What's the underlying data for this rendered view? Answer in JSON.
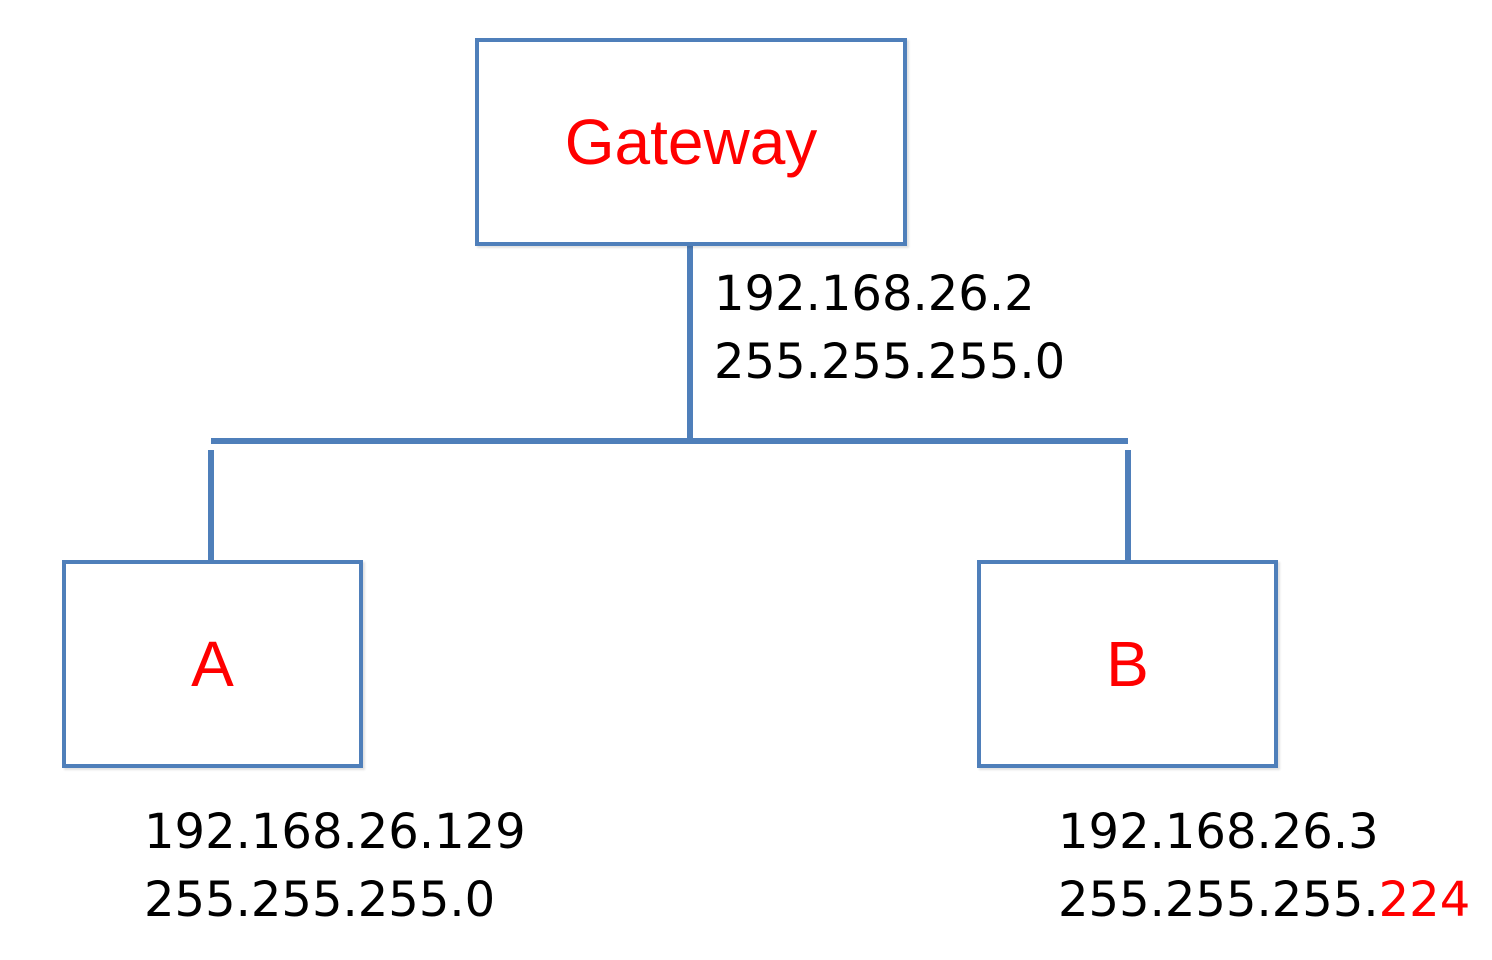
{
  "colors": {
    "node_border": "#4f7fba",
    "connector": "#4f7fba",
    "node_label": "#ff0000",
    "address_text": "#000000",
    "highlight": "#ff0000"
  },
  "nodes": {
    "gateway": {
      "label": "Gateway",
      "ip": "192.168.26.2",
      "mask": "255.255.255.0"
    },
    "a": {
      "label": "A",
      "ip": "192.168.26.129",
      "mask": "255.255.255.0"
    },
    "b": {
      "label": "B",
      "ip": "192.168.26.3",
      "mask_prefix": "255.255.255.",
      "mask_highlight": "224"
    }
  }
}
